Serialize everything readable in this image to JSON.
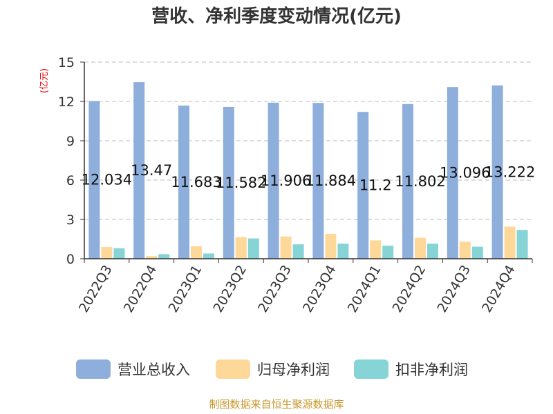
{
  "chart_data": {
    "type": "bar",
    "title": "营收、净利季度变动情况(亿元)",
    "ylabel": "(亿元)",
    "xlabel": "",
    "ylim": [
      0,
      15
    ],
    "yticks": [
      0,
      3,
      6,
      9,
      12,
      15
    ],
    "grid": true,
    "legend_position": "bottom",
    "categories": [
      "2022Q3",
      "2022Q4",
      "2023Q1",
      "2023Q2",
      "2023Q3",
      "2023Q4",
      "2024Q1",
      "2024Q2",
      "2024Q3",
      "2024Q4"
    ],
    "series": [
      {
        "name": "营业总收入",
        "color": "#8eaedc",
        "values": [
          12.034,
          13.47,
          11.683,
          11.582,
          11.906,
          11.884,
          11.2,
          11.802,
          13.096,
          13.222
        ],
        "labels": [
          "12.034",
          "13.47",
          "11.683",
          "11.582",
          "11.906",
          "11.884",
          "11.2",
          "11.802",
          "13.096",
          "13.222"
        ]
      },
      {
        "name": "归母净利润",
        "color": "#fdd898",
        "values": [
          0.9,
          0.2,
          0.95,
          1.65,
          1.7,
          1.9,
          1.4,
          1.6,
          1.3,
          2.45
        ]
      },
      {
        "name": "扣非净利润",
        "color": "#86d4d5",
        "values": [
          0.8,
          0.35,
          0.4,
          1.55,
          1.1,
          1.15,
          1.0,
          1.15,
          0.92,
          2.2
        ]
      }
    ],
    "source": "制图数据来自恒生聚源数据库"
  }
}
